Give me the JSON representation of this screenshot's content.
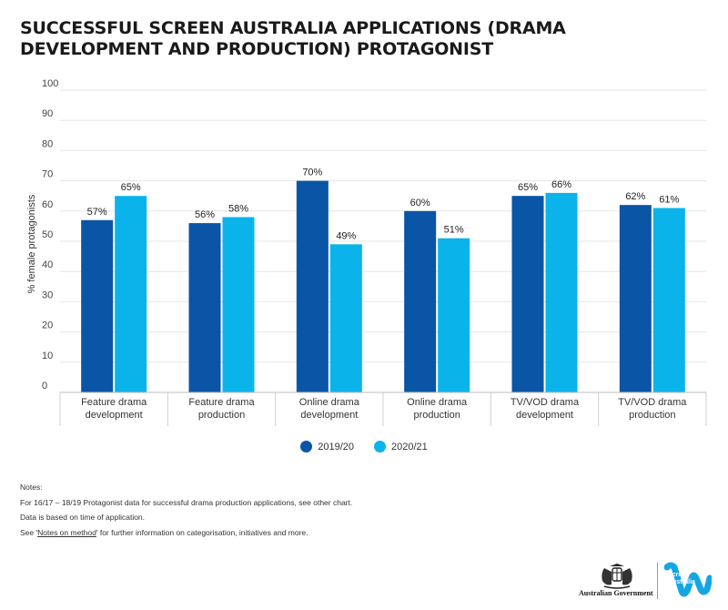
{
  "title": "SUCCESSFUL SCREEN AUSTRALIA APPLICATIONS (DRAMA DEVELOPMENT AND PRODUCTION) PROTAGONIST",
  "chart_data": {
    "type": "bar",
    "categories": [
      [
        "Feature drama",
        "development"
      ],
      [
        "Feature drama",
        "production"
      ],
      [
        "Online drama",
        "development"
      ],
      [
        "Online drama",
        "production"
      ],
      [
        "TV/VOD drama",
        "development"
      ],
      [
        "TV/VOD drama",
        "production"
      ]
    ],
    "series": [
      {
        "name": "2019/20",
        "color": "#0a55a5",
        "values": [
          57,
          56,
          70,
          60,
          65,
          62
        ]
      },
      {
        "name": "2020/21",
        "color": "#0ab4ea",
        "values": [
          65,
          58,
          49,
          51,
          66,
          61
        ]
      }
    ],
    "ylabel": "% female protagonists",
    "ylim": [
      0,
      100
    ],
    "yticks": [
      0,
      10,
      20,
      30,
      40,
      50,
      60,
      70,
      80,
      90,
      100
    ],
    "value_suffix": "%",
    "grid": true,
    "legend": "bottom-center"
  },
  "legend": {
    "s1_label": "2019/20",
    "s2_label": "2020/21",
    "s1_color": "#0a55a5",
    "s2_color": "#0ab4ea"
  },
  "notes": {
    "heading": "Notes:",
    "line1": "For 16/17 – 18/19 Protagonist data for successful drama production applications, see other chart.",
    "line2": "Data is based on time of application.",
    "line3_pre": "See '",
    "line3_link": "Notes on method",
    "line3_post": "' for further information on categorisation, initiatives and more."
  },
  "logos": {
    "gov_text": "Australian Government",
    "sa_text_line1": "Screen",
    "sa_text_line2": "Australia"
  }
}
